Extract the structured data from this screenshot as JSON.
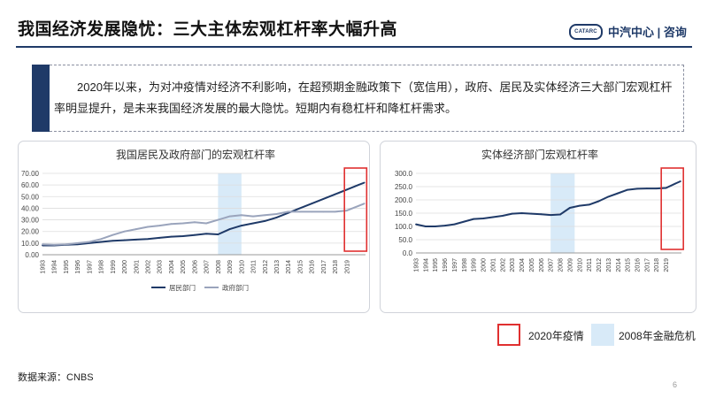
{
  "page": {
    "title": "我国经济发展隐忧：三大主体宏观杠杆率大幅升高",
    "logo_badge": "CATARC",
    "logo_text": "中汽中心 | 咨询",
    "summary": "2020年以来，为对冲疫情对经济不利影响，在超预期金融政策下（宽信用），政府、居民及实体经济三大部门宏观杠杆率明显提升，是未来我国经济发展的最大隐忧。短期内有稳杠杆和降杠杆需求。",
    "legend": {
      "covid_label": "2020年疫情",
      "crisis_label": "2008年金融危机"
    },
    "source": "数据来源：CNBS",
    "page_number": "6",
    "colors": {
      "navy": "#1f3a68",
      "gray_series": "#9aa4bc",
      "highlight_red": "#e03030",
      "crisis_fill": "#d8eaf8"
    }
  },
  "chart_data": [
    {
      "type": "line",
      "title": "我国居民及政府部门的宏观杠杆率",
      "xlabel": "",
      "ylabel": "",
      "ylim": [
        0,
        70
      ],
      "yticks": [
        "0.00",
        "10.00",
        "20.00",
        "30.00",
        "40.00",
        "50.00",
        "60.00",
        "70.00"
      ],
      "xtick_labels": [
        "1993",
        "1994",
        "1995",
        "1996",
        "1997",
        "1998",
        "1999",
        "2000",
        "2001",
        "2002",
        "2003",
        "2004",
        "2005",
        "2006",
        "2007",
        "2008",
        "2009",
        "2010",
        "2011",
        "2012",
        "2013",
        "2014",
        "2015",
        "2016",
        "2017",
        "2018",
        "2019"
      ],
      "x": [
        1993,
        1994,
        1995,
        1996,
        1997,
        1998,
        1999,
        2000,
        2001,
        2002,
        2003,
        2004,
        2005,
        2006,
        2007,
        2008,
        2009,
        2010,
        2011,
        2012,
        2013,
        2014,
        2015,
        2016,
        2017,
        2018,
        2019,
        2020,
        2020.5
      ],
      "series": [
        {
          "name": "居民部门",
          "color": "#1f3a68",
          "values": [
            8,
            8,
            8.5,
            9,
            10,
            11,
            12,
            12.5,
            13,
            13.5,
            14.5,
            15.5,
            16,
            17,
            18,
            17.5,
            22,
            25,
            27,
            29,
            32,
            36,
            40,
            44,
            48,
            52,
            56,
            60,
            62
          ]
        },
        {
          "name": "政府部门",
          "color": "#9aa4bc",
          "values": [
            9,
            8.5,
            9,
            10,
            11,
            13.5,
            17,
            20,
            22,
            24,
            25,
            26.5,
            27,
            28,
            27,
            30,
            33,
            34,
            33,
            34,
            35,
            37,
            37,
            37,
            37,
            37,
            38,
            42,
            44
          ]
        }
      ],
      "crisis_band": [
        2008,
        2010
      ],
      "covid_box": [
        2018.8,
        2020.7
      ],
      "legend_position": "bottom",
      "grid": "horizontal"
    },
    {
      "type": "line",
      "title": "实体经济部门宏观杠杆率",
      "xlabel": "",
      "ylabel": "",
      "ylim": [
        0,
        300
      ],
      "yticks": [
        "0.0",
        "50.0",
        "100.0",
        "150.0",
        "200.0",
        "250.0",
        "300.0"
      ],
      "xtick_labels": [
        "1993",
        "1994",
        "1995",
        "1996",
        "1997",
        "1998",
        "1999",
        "2000",
        "2001",
        "2002",
        "2003",
        "2004",
        "2005",
        "2006",
        "2007",
        "2008",
        "2009",
        "2010",
        "2011",
        "2012",
        "2013",
        "2014",
        "2015",
        "2016",
        "2017",
        "2018",
        "2019"
      ],
      "x": [
        1993,
        1994,
        1995,
        1996,
        1997,
        1998,
        1999,
        2000,
        2001,
        2002,
        2003,
        2004,
        2005,
        2006,
        2007,
        2008,
        2009,
        2010,
        2011,
        2012,
        2013,
        2014,
        2015,
        2016,
        2017,
        2018,
        2019,
        2020,
        2020.5
      ],
      "series": [
        {
          "name": "",
          "color": "#1f3a68",
          "values": [
            108,
            100,
            100,
            103,
            108,
            118,
            128,
            130,
            135,
            140,
            148,
            150,
            148,
            146,
            143,
            145,
            170,
            178,
            182,
            195,
            212,
            225,
            238,
            242,
            243,
            243,
            245,
            262,
            270
          ]
        }
      ],
      "crisis_band": [
        2007,
        2009.5
      ],
      "covid_box": [
        2018.5,
        2020.8
      ],
      "grid": "horizontal"
    }
  ]
}
